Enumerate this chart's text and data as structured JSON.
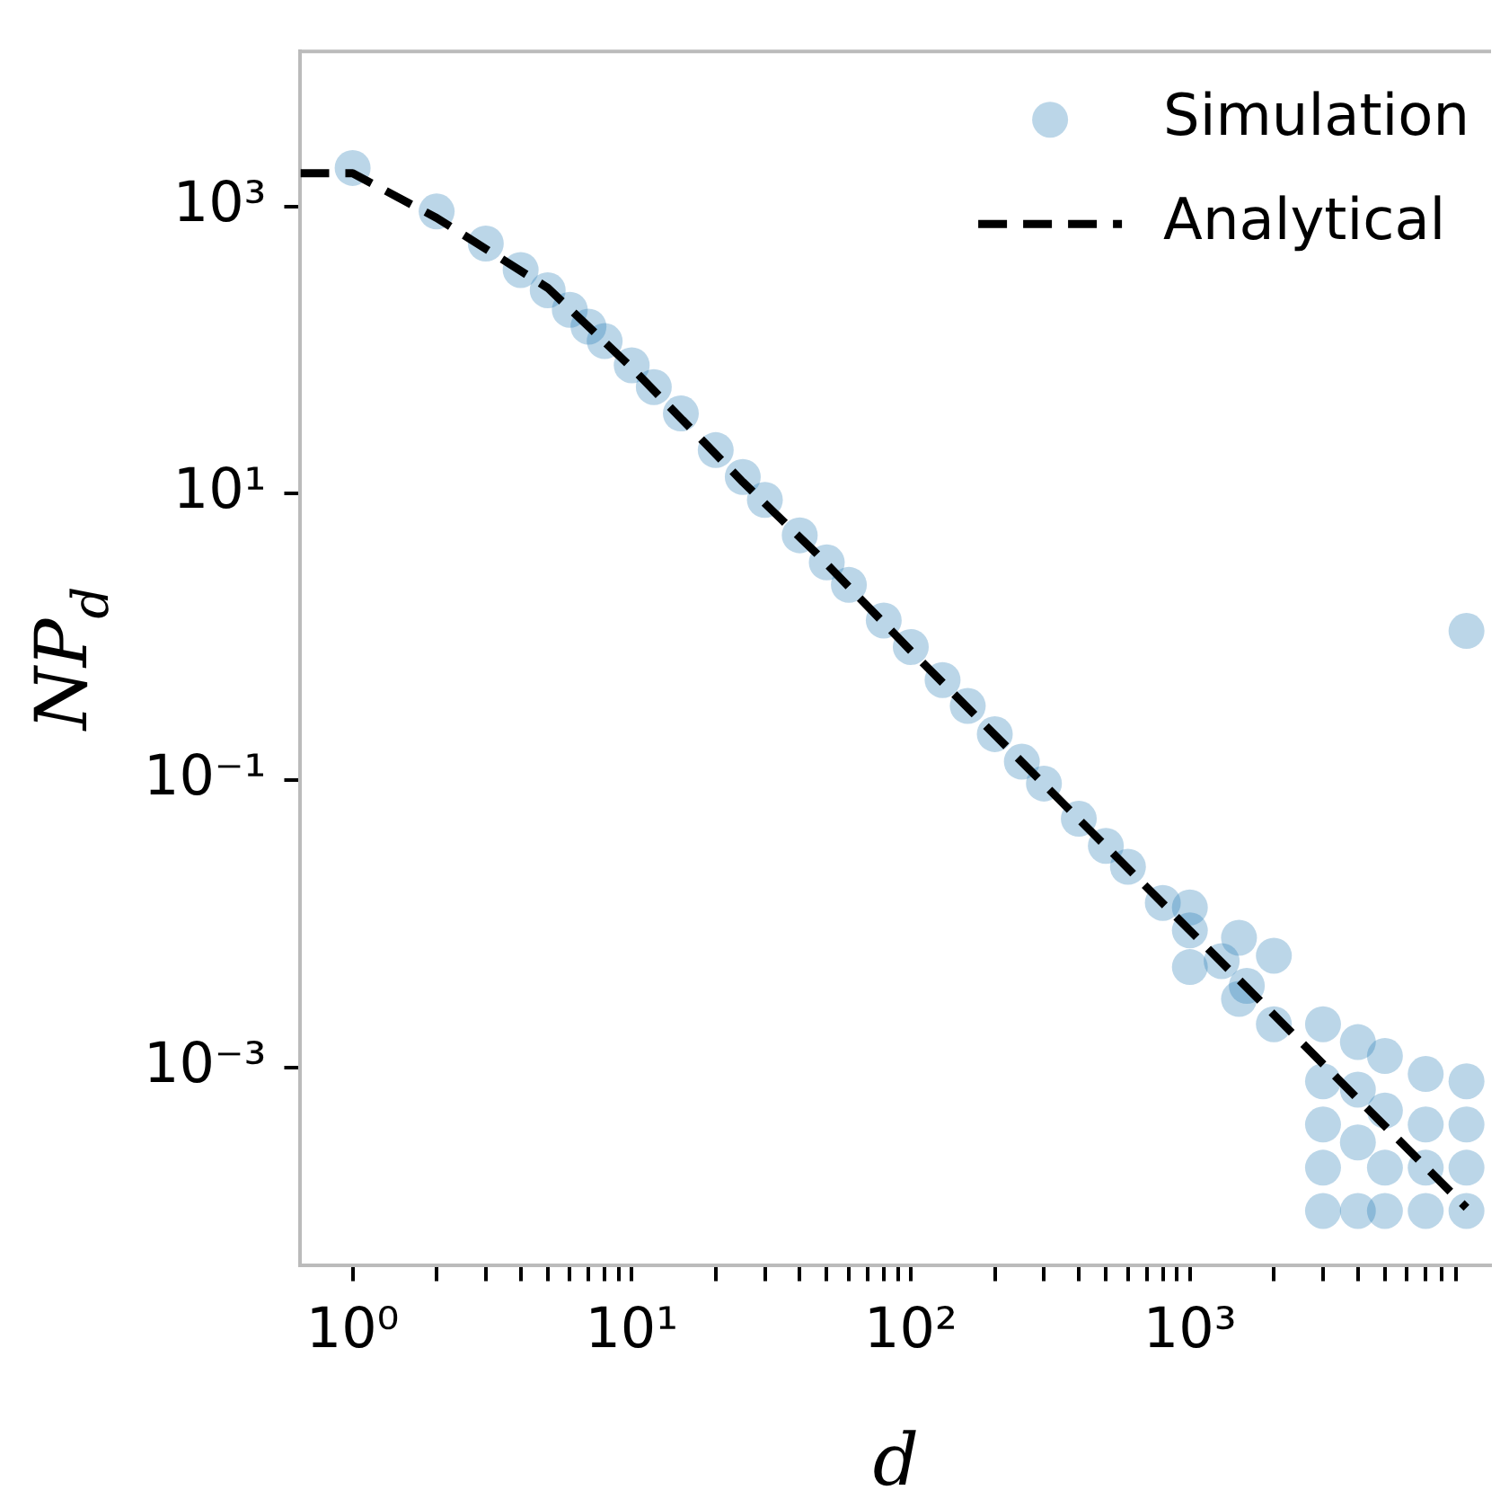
{
  "chart_data": {
    "type": "scatter",
    "xlabel": "d",
    "ylabel": "NP$_{d}$",
    "log": "xy",
    "legend": "top right",
    "xlim": [
      0.65,
      12000
    ],
    "ylim": [
      4.2e-05,
      12000
    ],
    "xticks": [
      {
        "value": 1,
        "label": "10⁰"
      },
      {
        "value": 2,
        "label": null
      },
      {
        "value": 3,
        "label": null
      },
      {
        "value": 4,
        "label": null
      },
      {
        "value": 5,
        "label": null
      },
      {
        "value": 6,
        "label": null
      },
      {
        "value": 7,
        "label": null
      },
      {
        "value": 8,
        "label": null
      },
      {
        "value": 9,
        "label": null
      },
      {
        "value": 10,
        "label": "10¹"
      },
      {
        "value": 20,
        "label": null
      },
      {
        "value": 30,
        "label": null
      },
      {
        "value": 40,
        "label": null
      },
      {
        "value": 50,
        "label": null
      },
      {
        "value": 60,
        "label": null
      },
      {
        "value": 70,
        "label": null
      },
      {
        "value": 80,
        "label": null
      },
      {
        "value": 90,
        "label": null
      },
      {
        "value": 100,
        "label": "10²"
      },
      {
        "value": 200,
        "label": null
      },
      {
        "value": 300,
        "label": null
      },
      {
        "value": 400,
        "label": null
      },
      {
        "value": 500,
        "label": null
      },
      {
        "value": 600,
        "label": null
      },
      {
        "value": 700,
        "label": null
      },
      {
        "value": 800,
        "label": null
      },
      {
        "value": 900,
        "label": null
      },
      {
        "value": 1000,
        "label": "10³"
      },
      {
        "value": 2000,
        "label": null
      },
      {
        "value": 3000,
        "label": null
      },
      {
        "value": 4000,
        "label": null
      },
      {
        "value": 5000,
        "label": null
      },
      {
        "value": 6000,
        "label": null
      },
      {
        "value": 7000,
        "label": null
      },
      {
        "value": 8000,
        "label": null
      },
      {
        "value": 9000,
        "label": null
      }
    ],
    "yticks": [
      {
        "value": 0.001,
        "label": "10⁻³"
      },
      {
        "value": 0.1,
        "label": "10⁻¹"
      },
      {
        "value": 10,
        "label": "10¹"
      },
      {
        "value": 1000,
        "label": "10³"
      }
    ],
    "series": [
      {
        "name": "Simulation",
        "marker": "circle",
        "color": "#1f77b4",
        "x": [
          1,
          2,
          3,
          4,
          5,
          6,
          7,
          8,
          10,
          12,
          15,
          20,
          25,
          30,
          40,
          50,
          60,
          80,
          100,
          130,
          160,
          200,
          250,
          300,
          400,
          500,
          600,
          800,
          1000,
          1000,
          1000,
          1300,
          1500,
          1500,
          1600,
          2000,
          2000,
          3000,
          3000,
          3000,
          3000,
          3000,
          4000,
          4000,
          4000,
          4000,
          5000,
          5000,
          5000,
          5000,
          7000,
          7000,
          7000,
          7000,
          9800,
          9800,
          9800,
          9800,
          9800
        ],
        "values": [
          1850,
          920,
          550,
          360,
          260,
          190,
          145,
          115,
          78,
          55,
          36,
          20,
          13,
          9,
          5.1,
          3.3,
          2.3,
          1.3,
          0.85,
          0.5,
          0.33,
          0.21,
          0.135,
          0.095,
          0.054,
          0.035,
          0.025,
          0.014,
          0.009,
          0.013,
          0.005,
          0.0055,
          0.008,
          0.003,
          0.0037,
          0.006,
          0.002,
          0.002,
          0.0008,
          0.0004,
          0.0002,
          0.0001,
          0.0015,
          0.0007,
          0.0003,
          0.0001,
          0.0012,
          0.0005,
          0.0002,
          0.0001,
          0.0009,
          0.0004,
          0.0002,
          0.0001,
          0.0008,
          0.0004,
          0.0002,
          0.0001,
          1.1
        ]
      },
      {
        "name": "Analytical",
        "type": "line",
        "line_style": "dashed",
        "color": "#000000",
        "x": [
          0.65,
          1,
          2,
          5,
          10,
          25,
          46,
          100,
          1000,
          9800
        ],
        "values": [
          1700,
          1700,
          830,
          270,
          75,
          12,
          3.8,
          0.8,
          0.009,
          0.000105
        ]
      }
    ]
  }
}
